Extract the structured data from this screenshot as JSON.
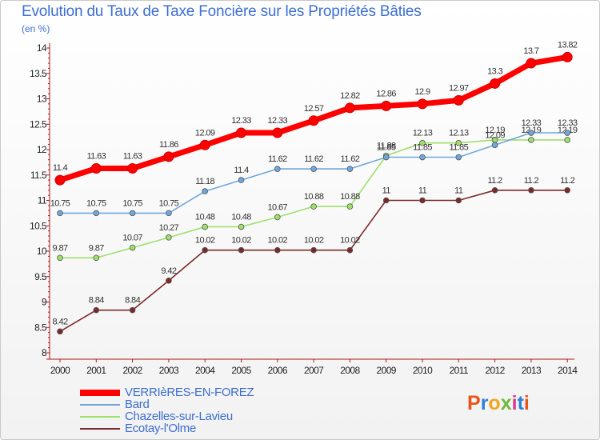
{
  "title": "Evolution du Taux de Taxe Foncière sur les Propriétés Bâties",
  "subtitle": "(en %)",
  "logo_text": "Proxiti",
  "logo_colors": [
    "#e8541a",
    "#2f7fd8",
    "#f2a61d",
    "#6fb83c",
    "#d63b8f",
    "#2f7fd8",
    "#e8541a"
  ],
  "chart_data": {
    "type": "line",
    "title": "Evolution du Taux de Taxe Foncière sur les Propriétés Bâties",
    "ylabel": "(en %)",
    "xlabel": "",
    "ylim": [
      8,
      14
    ],
    "yticks": [
      "8",
      "8.5",
      "9",
      "9.5",
      "10",
      "10.5",
      "11",
      "11.5",
      "12",
      "12.5",
      "13",
      "13.5",
      "14"
    ],
    "x": [
      "2000",
      "2001",
      "2002",
      "2003",
      "2004",
      "2005",
      "2006",
      "2007",
      "2008",
      "2009",
      "2010",
      "2011",
      "2012",
      "2013",
      "2014"
    ],
    "grid": false,
    "legend_position": "bottom-left",
    "series": [
      {
        "name": "VERRIèRES-EN-FOREZ",
        "color": "#ff0000",
        "values": [
          11.4,
          11.63,
          11.63,
          11.86,
          12.09,
          12.33,
          12.33,
          12.57,
          12.82,
          12.86,
          12.9,
          12.97,
          13.3,
          13.7,
          13.82
        ],
        "labels": [
          "11.4",
          "11.63",
          "11.63",
          "11.86",
          "12.09",
          "12.33",
          "12.33",
          "12.57",
          "12.82",
          "12.86",
          "12.9",
          "12.97",
          "13.3",
          "13.7",
          "13.82"
        ]
      },
      {
        "name": "Bard",
        "color": "#6fa7db",
        "values": [
          10.75,
          10.75,
          10.75,
          10.75,
          11.18,
          11.4,
          11.62,
          11.62,
          11.62,
          11.85,
          11.85,
          11.85,
          12.09,
          12.33,
          12.33
        ],
        "labels": [
          "10.75",
          "10.75",
          "10.75",
          "10.75",
          "11.18",
          "11.4",
          "11.62",
          "11.62",
          "11.62",
          "11.85",
          "11.85",
          "11.85",
          "12.09",
          "12.33",
          "12.33"
        ]
      },
      {
        "name": "Chazelles-sur-Lavieu",
        "color": "#9ee06a",
        "values": [
          9.87,
          9.87,
          10.07,
          10.27,
          10.48,
          10.48,
          10.67,
          10.88,
          10.88,
          11.88,
          12.13,
          12.13,
          12.19,
          12.19,
          12.19
        ],
        "labels": [
          "9.87",
          "9.87",
          "10.07",
          "10.27",
          "10.48",
          "10.48",
          "10.67",
          "10.88",
          "10.88",
          "11.88",
          "12.13",
          "12.13",
          "12.19",
          "12.19",
          "12.19"
        ]
      },
      {
        "name": "Ecotay-l'Olme",
        "color": "#7a2a2a",
        "values": [
          8.42,
          8.84,
          8.84,
          9.42,
          10.02,
          10.02,
          10.02,
          10.02,
          10.02,
          11,
          11,
          11,
          11.2,
          11.2,
          11.2
        ],
        "labels": [
          "8.42",
          "8.84",
          "8.84",
          "9.42",
          "10.02",
          "10.02",
          "10.02",
          "10.02",
          "10.02",
          "11",
          "11",
          "11",
          "11.2",
          "11.2",
          "11.2"
        ]
      }
    ]
  }
}
